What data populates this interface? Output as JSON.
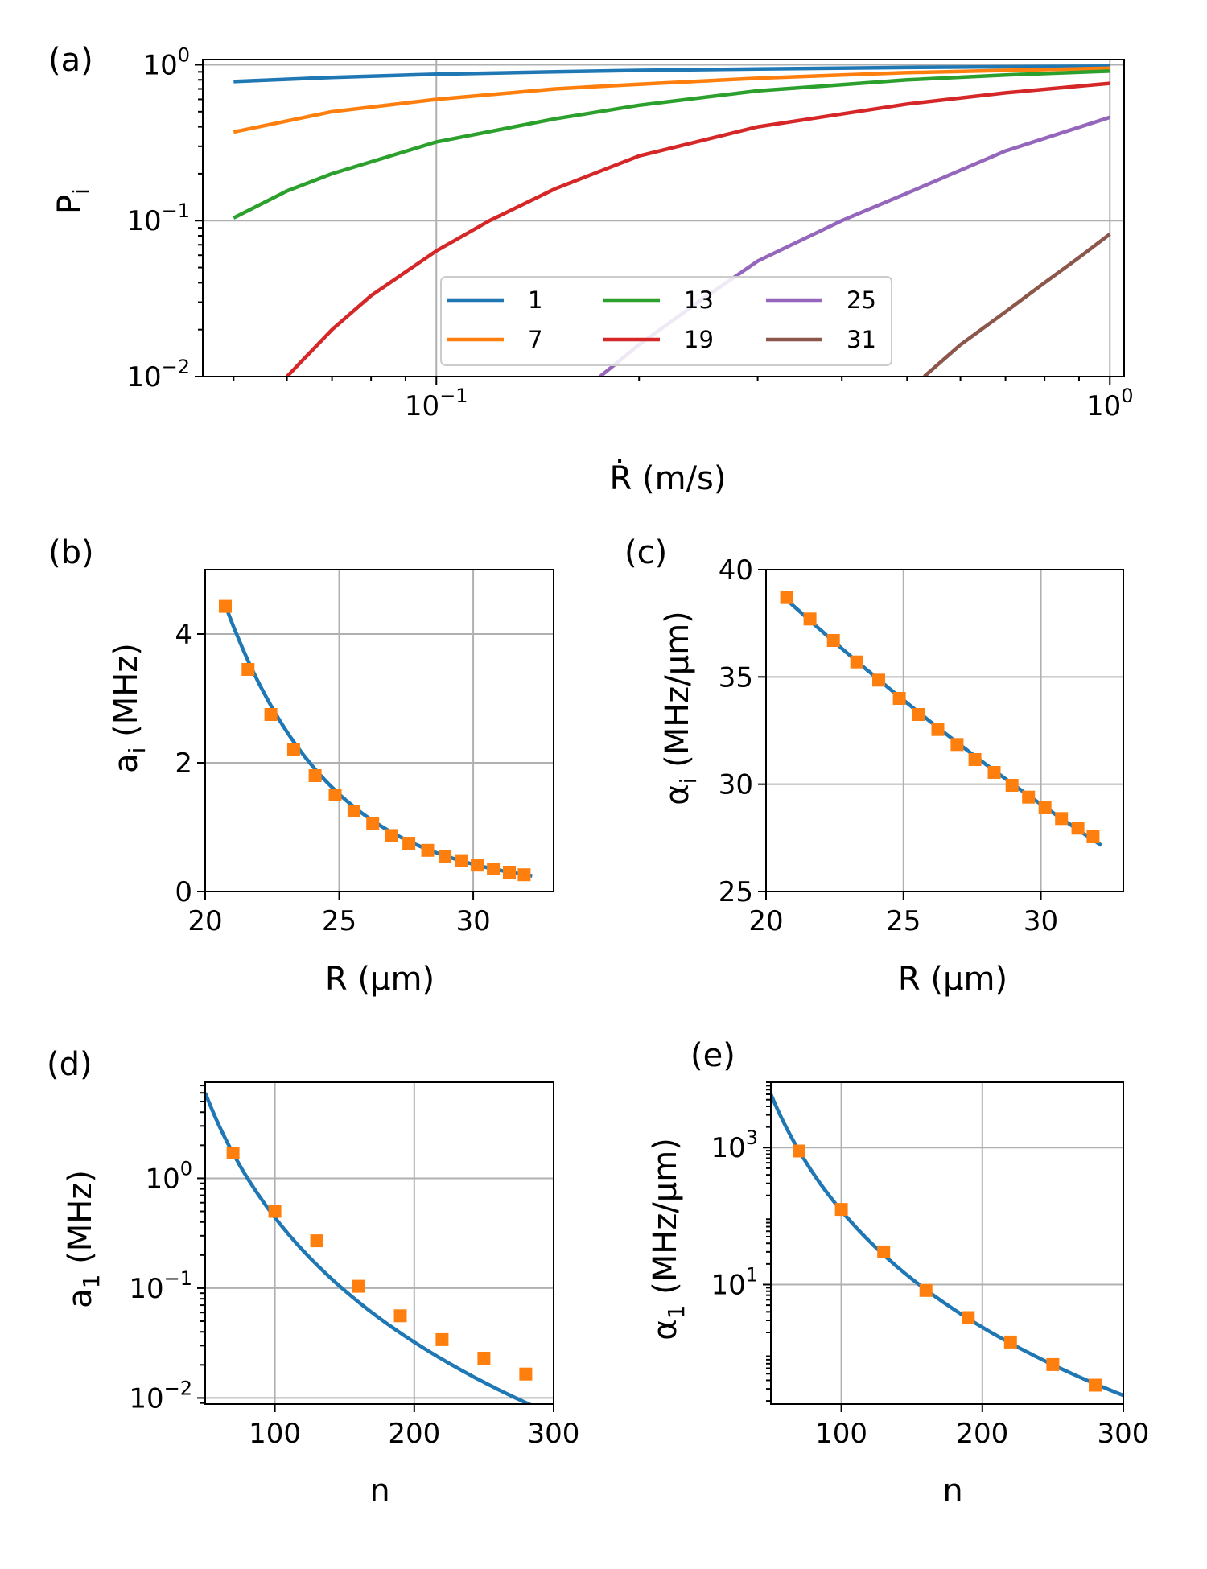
{
  "chart_data": [
    {
      "id": "a",
      "panel_label": "(a)",
      "type": "line",
      "xscale": "log",
      "yscale": "log",
      "xlim": [
        0.045,
        1.05
      ],
      "ylim": [
        0.01,
        1.08
      ],
      "xticks": [
        {
          "v": 0.1,
          "label": "10",
          "exp": "−1"
        },
        {
          "v": 1,
          "label": "10",
          "exp": "0"
        }
      ],
      "yticks": [
        {
          "v": 0.01,
          "label": "10",
          "exp": "−2"
        },
        {
          "v": 0.1,
          "label": "10",
          "exp": "−1"
        },
        {
          "v": 1,
          "label": "10",
          "exp": "0"
        }
      ],
      "xlabel": "Ṙ (m/s)",
      "ylabel": "P",
      "ylabel_sub": "i",
      "grid": true,
      "legend": {
        "placement": "lower-center",
        "columns": 3
      },
      "series": [
        {
          "name": "1",
          "color": "#1f77b4",
          "x": [
            0.05,
            0.07,
            0.1,
            0.15,
            0.2,
            0.3,
            0.5,
            0.7,
            1.0
          ],
          "y": [
            0.78,
            0.83,
            0.87,
            0.9,
            0.92,
            0.94,
            0.96,
            0.97,
            0.98
          ]
        },
        {
          "name": "7",
          "color": "#ff7f0e",
          "x": [
            0.05,
            0.07,
            0.1,
            0.15,
            0.2,
            0.3,
            0.5,
            0.7,
            1.0
          ],
          "y": [
            0.37,
            0.5,
            0.6,
            0.7,
            0.75,
            0.82,
            0.89,
            0.92,
            0.95
          ]
        },
        {
          "name": "13",
          "color": "#2ca02c",
          "x": [
            0.05,
            0.06,
            0.07,
            0.1,
            0.15,
            0.2,
            0.3,
            0.5,
            0.7,
            1.0
          ],
          "y": [
            0.104,
            0.155,
            0.2,
            0.32,
            0.45,
            0.55,
            0.68,
            0.8,
            0.86,
            0.91
          ]
        },
        {
          "name": "19",
          "color": "#d62728",
          "x": [
            0.06,
            0.07,
            0.08,
            0.1,
            0.12,
            0.15,
            0.2,
            0.3,
            0.5,
            0.7,
            1.0
          ],
          "y": [
            0.01,
            0.02,
            0.033,
            0.064,
            0.1,
            0.16,
            0.26,
            0.4,
            0.56,
            0.66,
            0.76
          ]
        },
        {
          "name": "25",
          "color": "#9467bd",
          "x": [
            0.175,
            0.2,
            0.25,
            0.3,
            0.4,
            0.5,
            0.7,
            1.0
          ],
          "y": [
            0.01,
            0.016,
            0.032,
            0.055,
            0.1,
            0.15,
            0.28,
            0.46
          ]
        },
        {
          "name": "31",
          "color": "#8c564b",
          "x": [
            0.53,
            0.6,
            0.7,
            0.8,
            0.9,
            1.0
          ],
          "y": [
            0.01,
            0.016,
            0.026,
            0.04,
            0.058,
            0.082
          ]
        }
      ]
    },
    {
      "id": "b",
      "panel_label": "(b)",
      "type": "line+scatter",
      "xscale": "linear",
      "yscale": "linear",
      "xlim": [
        20,
        33
      ],
      "ylim": [
        0,
        5
      ],
      "xticks": [
        {
          "v": 20,
          "label": "20"
        },
        {
          "v": 25,
          "label": "25"
        },
        {
          "v": 30,
          "label": "30"
        }
      ],
      "yticks": [
        {
          "v": 0,
          "label": "0"
        },
        {
          "v": 2,
          "label": "2"
        },
        {
          "v": 4,
          "label": "4"
        }
      ],
      "xlabel": "R (μm)",
      "ylabel": "a",
      "ylabel_sub": "i",
      "ylabel_suffix": " (MHz)",
      "grid": true,
      "line": {
        "color": "#1f77b4",
        "model": "exp",
        "A": 4.45,
        "k": 0.254,
        "x0": 20.75,
        "xend": 32.2
      },
      "points": {
        "color": "#ff7f0e",
        "x": [
          20.75,
          21.6,
          22.45,
          23.3,
          24.1,
          24.85,
          25.55,
          26.25,
          26.95,
          27.6,
          28.3,
          28.95,
          29.55,
          30.15,
          30.75,
          31.35,
          31.9
        ],
        "y": [
          4.43,
          3.45,
          2.75,
          2.2,
          1.8,
          1.5,
          1.25,
          1.05,
          0.87,
          0.75,
          0.64,
          0.55,
          0.48,
          0.41,
          0.35,
          0.3,
          0.26
        ]
      }
    },
    {
      "id": "c",
      "panel_label": "(c)",
      "type": "line+scatter",
      "xscale": "linear",
      "yscale": "linear",
      "xlim": [
        20,
        33
      ],
      "ylim": [
        25,
        40
      ],
      "xticks": [
        {
          "v": 20,
          "label": "20"
        },
        {
          "v": 25,
          "label": "25"
        },
        {
          "v": 30,
          "label": "30"
        }
      ],
      "yticks": [
        {
          "v": 25,
          "label": "25"
        },
        {
          "v": 30,
          "label": "30"
        },
        {
          "v": 35,
          "label": "35"
        },
        {
          "v": 40,
          "label": "40"
        }
      ],
      "xlabel": "R (μm)",
      "ylabel": "α",
      "ylabel_sub": "i",
      "ylabel_suffix": " (MHz/μm)",
      "grid": true,
      "line": {
        "color": "#1f77b4",
        "model": "poly",
        "x0": 20.75,
        "xend": 32.2,
        "coef": [
          38.6,
          -1.16,
          0.014
        ]
      },
      "points": {
        "color": "#ff7f0e",
        "x": [
          20.75,
          21.6,
          22.45,
          23.3,
          24.1,
          24.85,
          25.55,
          26.25,
          26.95,
          27.6,
          28.3,
          28.95,
          29.55,
          30.15,
          30.75,
          31.35,
          31.9
        ],
        "y": [
          38.7,
          37.7,
          36.7,
          35.7,
          34.85,
          34.0,
          33.25,
          32.55,
          31.85,
          31.15,
          30.55,
          29.95,
          29.4,
          28.9,
          28.4,
          27.95,
          27.55
        ]
      }
    },
    {
      "id": "d",
      "panel_label": "(d)",
      "type": "line+scatter",
      "xscale": "linear",
      "yscale": "log",
      "xlim": [
        50,
        300
      ],
      "ylim": [
        0.0088,
        7.5
      ],
      "xticks": [
        {
          "v": 100,
          "label": "100"
        },
        {
          "v": 200,
          "label": "200"
        },
        {
          "v": 300,
          "label": "300"
        }
      ],
      "yticks": [
        {
          "v": 0.01,
          "label": "10",
          "exp": "−2"
        },
        {
          "v": 0.1,
          "label": "10",
          "exp": "−1"
        },
        {
          "v": 1,
          "label": "10",
          "exp": "0"
        }
      ],
      "xlabel": "n",
      "ylabel": "a",
      "ylabel_sub": "1",
      "ylabel_suffix": " (MHz)",
      "grid": true,
      "line": {
        "color": "#1f77b4",
        "model": "power",
        "C": 6.0,
        "p": -3.77,
        "nref": 50,
        "x0": 50,
        "xend": 300
      },
      "points": {
        "color": "#ff7f0e",
        "x": [
          70,
          100,
          130,
          160,
          190,
          220,
          250,
          280
        ],
        "y": [
          1.7,
          0.5,
          0.27,
          0.104,
          0.056,
          0.034,
          0.023,
          0.0165
        ]
      }
    },
    {
      "id": "e",
      "panel_label": "(e)",
      "type": "line+scatter",
      "xscale": "linear",
      "yscale": "log",
      "xlim": [
        50,
        300
      ],
      "ylim": [
        0.18,
        9000
      ],
      "xticks": [
        {
          "v": 100,
          "label": "100"
        },
        {
          "v": 200,
          "label": "200"
        },
        {
          "v": 300,
          "label": "300"
        }
      ],
      "yticks": [
        {
          "v": 10,
          "label": "10",
          "exp": "1"
        },
        {
          "v": 1000,
          "label": "10",
          "exp": "3"
        }
      ],
      "xlabel": "n",
      "ylabel": "α",
      "ylabel_sub": "1",
      "ylabel_suffix": " (MHz/μm)",
      "grid": true,
      "line": {
        "color": "#1f77b4",
        "model": "power",
        "C": 6000,
        "p": -5.65,
        "nref": 50,
        "x0": 50,
        "xend": 300
      },
      "points": {
        "color": "#ff7f0e",
        "x": [
          70,
          100,
          130,
          160,
          190,
          220,
          250,
          280
        ],
        "y": [
          890,
          125,
          30,
          8.2,
          3.3,
          1.45,
          0.68,
          0.34
        ]
      }
    }
  ]
}
